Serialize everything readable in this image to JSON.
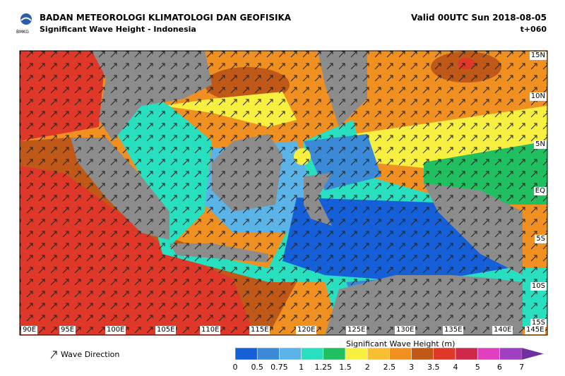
{
  "header": {
    "logo_text": "BMKG",
    "agency": "BADAN METEOROLOGI KLIMATOLOGI DAN GEOFISIKA",
    "subtitle": "Significant Wave Height - Indonesia",
    "valid": "Valid 00UTC Sun 2018-08-05",
    "lead": "t+060"
  },
  "map": {
    "lat_labels": [
      "15N",
      "10N",
      "5N",
      "EQ",
      "5S",
      "10S",
      "15S"
    ],
    "lon_labels": [
      "90E",
      "95E",
      "100E",
      "105E",
      "110E",
      "115E",
      "120E",
      "125E",
      "130E",
      "135E",
      "140E",
      "145E"
    ]
  },
  "legend": {
    "arrow_label": "Wave Direction",
    "colorbar": {
      "title": "Significant Wave Height (m)",
      "ticks": [
        0,
        0.5,
        0.75,
        1,
        1.25,
        1.5,
        2,
        2.5,
        3,
        3.5,
        4,
        5,
        6,
        7
      ],
      "colors": [
        "#1560d8",
        "#3a8ad8",
        "#5ab4e8",
        "#28e0c0",
        "#20c060",
        "#f8f040",
        "#f8c030",
        "#f09020",
        "#c05818",
        "#e03828",
        "#d02848",
        "#e040c0",
        "#a040c0",
        "#7030a0"
      ]
    }
  }
}
